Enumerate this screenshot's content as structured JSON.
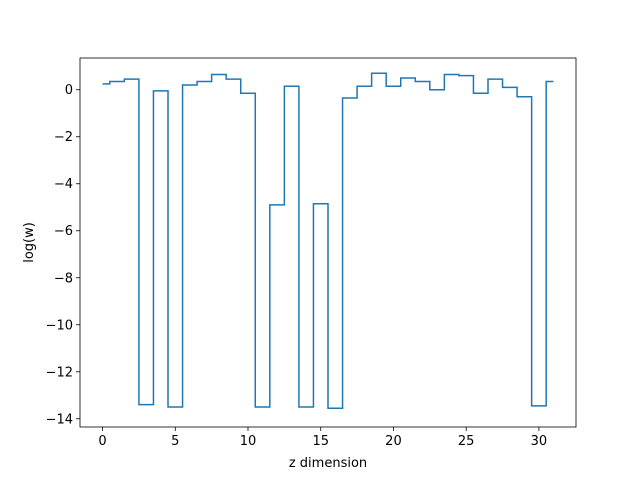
{
  "chart_data": {
    "type": "line",
    "drawstyle": "steps-mid",
    "title": "",
    "xlabel": "z dimension",
    "ylabel": "log(w)",
    "xlim": [
      -1.55,
      32.55
    ],
    "ylim": [
      -14.35,
      1.35
    ],
    "xticks": [
      0,
      5,
      10,
      15,
      20,
      25,
      30
    ],
    "yticks": [
      -14,
      -12,
      -10,
      -8,
      -6,
      -4,
      -2,
      0
    ],
    "grid": false,
    "color": "#1f77b4",
    "x": [
      0,
      1,
      2,
      3,
      4,
      5,
      6,
      7,
      8,
      9,
      10,
      11,
      12,
      13,
      14,
      15,
      16,
      17,
      18,
      19,
      20,
      21,
      22,
      23,
      24,
      25,
      26,
      27,
      28,
      29,
      30,
      31
    ],
    "values": [
      0.25,
      0.35,
      0.45,
      -13.4,
      -0.05,
      -13.5,
      0.2,
      0.35,
      0.65,
      0.45,
      -0.15,
      -13.5,
      -4.9,
      0.15,
      -13.5,
      -4.85,
      -13.55,
      -0.35,
      0.15,
      0.7,
      0.15,
      0.5,
      0.35,
      0.0,
      0.65,
      0.6,
      -0.15,
      0.45,
      0.1,
      -0.3,
      -13.45,
      0.35
    ]
  }
}
